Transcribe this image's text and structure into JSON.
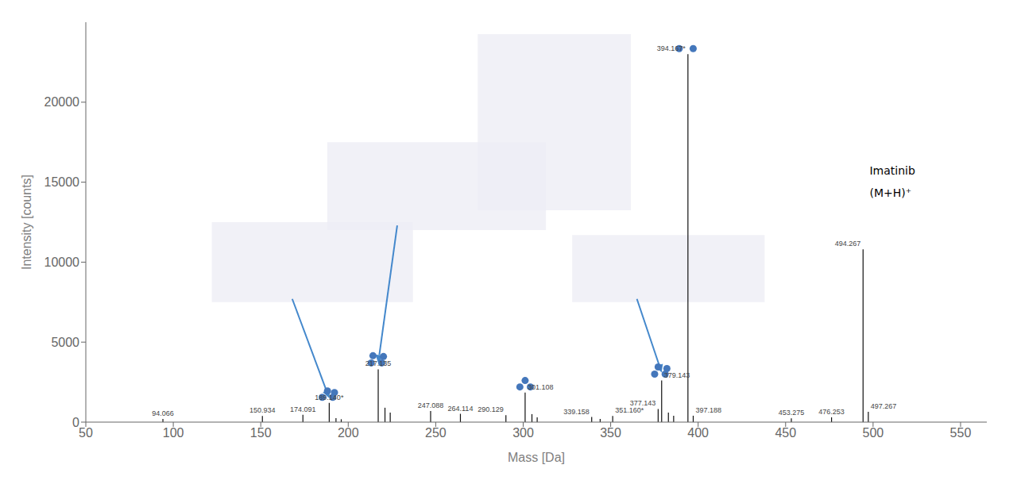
{
  "chart_data": {
    "type": "stem",
    "xlabel": "Mass [Da]",
    "ylabel": "Intensity [counts]",
    "x": [
      94.066,
      150.934,
      174.091,
      189.14,
      193.0,
      196.0,
      217.135,
      221.0,
      224.0,
      247.088,
      264.114,
      290.129,
      301.108,
      305.0,
      308.0,
      339.158,
      344.0,
      351.16,
      377.143,
      379.143,
      383.0,
      386.0,
      394.167,
      397.188,
      453.275,
      476.253,
      494.267,
      497.267
    ],
    "values": [
      200,
      380,
      460,
      1200,
      250,
      180,
      3300,
      900,
      600,
      700,
      520,
      430,
      1850,
      500,
      300,
      320,
      200,
      380,
      820,
      2600,
      600,
      400,
      23000,
      400,
      230,
      300,
      10800,
      650
    ],
    "point_labels": [
      "94.066",
      "150.934",
      "174.091",
      "189.140*",
      null,
      null,
      "217.135",
      null,
      null,
      "247.088",
      "264.114",
      "290.129",
      "301.108",
      null,
      null,
      "339.158",
      null,
      "351.160*",
      "377.143",
      "379.143",
      null,
      null,
      "394.167*",
      "397.188",
      "453.275",
      "476.253",
      "494.267",
      "497.267"
    ],
    "color": "#111111",
    "xlim": [
      50,
      565
    ],
    "ylim": [
      0,
      25000
    ],
    "xticks": [
      50,
      100,
      150,
      200,
      250,
      300,
      350,
      400,
      450,
      500,
      550
    ],
    "yticks": [
      0,
      5000,
      10000,
      15000,
      20000
    ],
    "grid": false,
    "markers": {
      "color": "#4477bb",
      "points": [
        [
          185.14,
          1550
        ],
        [
          191.14,
          1550
        ],
        [
          188.14,
          1950
        ],
        [
          192.14,
          1850
        ],
        [
          213.135,
          3700
        ],
        [
          219.135,
          3700
        ],
        [
          214.135,
          4150
        ],
        [
          220.135,
          4100
        ],
        [
          298.108,
          2200
        ],
        [
          304.108,
          2200
        ],
        [
          301.108,
          2600
        ],
        [
          375.143,
          3000
        ],
        [
          381.143,
          3000
        ],
        [
          377.143,
          3450
        ],
        [
          382.143,
          3350
        ],
        [
          389.167,
          23350
        ],
        [
          397.167,
          23350
        ]
      ]
    },
    "boxes": {
      "color": "#edeef5",
      "items": [
        {
          "x": [
            122,
            237
          ],
          "y": [
            7500,
            12500
          ]
        },
        {
          "x": [
            188,
            313
          ],
          "y": [
            12000,
            17500
          ]
        },
        {
          "x": [
            328,
            438
          ],
          "y": [
            7500,
            11700
          ]
        },
        {
          "x": [
            274.025,
            361.575
          ],
          "y": [
            13250,
            24250
          ]
        }
      ]
    },
    "arrows": {
      "color": "#4488cc",
      "items": [
        {
          "from": [
            168,
            7700
          ],
          "to": [
            189.14,
            1500
          ]
        },
        {
          "from": [
            228,
            12300
          ],
          "to": [
            217.135,
            3700
          ]
        },
        {
          "from": [
            365,
            7700
          ],
          "to": [
            379.143,
            3100
          ]
        }
      ]
    },
    "annotations": [
      {
        "text": "Imatinib",
        "x": 498,
        "y": 15500
      },
      {
        "text": "(M+H)⁺",
        "x": 498,
        "y": 14100
      }
    ]
  }
}
